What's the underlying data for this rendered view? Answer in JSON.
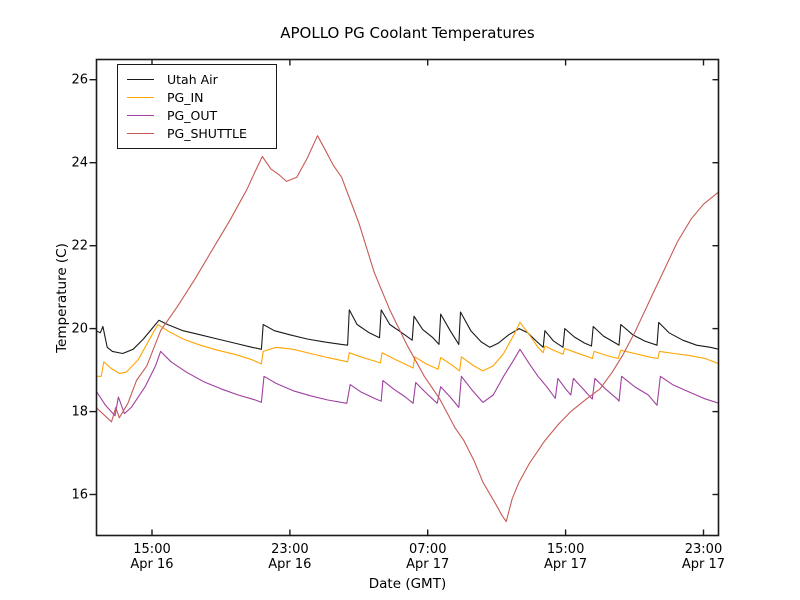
{
  "figure": {
    "background": "#ffffff",
    "frame_color": "#1a1a1a",
    "tick_color": "#1a1a1a"
  },
  "chart_data": {
    "type": "line",
    "title": "APOLLO PG Coolant Temperatures",
    "xlabel": "Date (GMT)",
    "ylabel": "Temperature (C)",
    "x_units": "hours since Apr 16 00:00 GMT",
    "xlim": [
      11.75,
      47.9
    ],
    "ylim": [
      15,
      26.5
    ],
    "yticks": [
      16,
      18,
      20,
      22,
      24,
      26
    ],
    "xticks": [
      {
        "hour": 15,
        "time": "15:00",
        "date": "Apr 16"
      },
      {
        "hour": 23,
        "time": "23:00",
        "date": "Apr 16"
      },
      {
        "hour": 31,
        "time": "07:00",
        "date": "Apr 17"
      },
      {
        "hour": 39,
        "time": "15:00",
        "date": "Apr 17"
      },
      {
        "hour": 47,
        "time": "23:00",
        "date": "Apr 17"
      }
    ],
    "grid": false,
    "legend_position": "upper left",
    "series": [
      {
        "name": "Utah Air",
        "color": "#1a1a1a",
        "points": [
          [
            11.75,
            19.95
          ],
          [
            12.0,
            19.9
          ],
          [
            12.15,
            20.05
          ],
          [
            12.4,
            19.55
          ],
          [
            12.7,
            19.45
          ],
          [
            13.3,
            19.4
          ],
          [
            13.9,
            19.5
          ],
          [
            14.5,
            19.75
          ],
          [
            15.0,
            20.0
          ],
          [
            15.4,
            20.2
          ],
          [
            15.9,
            20.1
          ],
          [
            16.8,
            19.95
          ],
          [
            17.8,
            19.85
          ],
          [
            18.8,
            19.75
          ],
          [
            19.8,
            19.65
          ],
          [
            20.8,
            19.55
          ],
          [
            21.35,
            19.5
          ],
          [
            21.45,
            20.1
          ],
          [
            22.1,
            19.95
          ],
          [
            23.0,
            19.85
          ],
          [
            24.0,
            19.75
          ],
          [
            25.0,
            19.68
          ],
          [
            26.0,
            19.62
          ],
          [
            26.35,
            19.6
          ],
          [
            26.45,
            20.45
          ],
          [
            26.9,
            20.1
          ],
          [
            27.6,
            19.9
          ],
          [
            28.2,
            19.78
          ],
          [
            28.3,
            20.45
          ],
          [
            28.8,
            20.1
          ],
          [
            29.5,
            19.9
          ],
          [
            30.1,
            19.72
          ],
          [
            30.2,
            20.3
          ],
          [
            30.7,
            19.98
          ],
          [
            31.3,
            19.78
          ],
          [
            31.65,
            19.62
          ],
          [
            31.75,
            20.35
          ],
          [
            32.3,
            19.95
          ],
          [
            32.8,
            19.62
          ],
          [
            32.9,
            20.4
          ],
          [
            33.5,
            19.95
          ],
          [
            34.1,
            19.68
          ],
          [
            34.6,
            19.55
          ],
          [
            35.1,
            19.65
          ],
          [
            35.7,
            19.85
          ],
          [
            36.3,
            20.0
          ],
          [
            36.8,
            19.9
          ],
          [
            37.3,
            19.7
          ],
          [
            37.7,
            19.55
          ],
          [
            37.8,
            19.95
          ],
          [
            38.3,
            19.7
          ],
          [
            38.85,
            19.55
          ],
          [
            38.95,
            20.0
          ],
          [
            39.5,
            19.8
          ],
          [
            40.1,
            19.65
          ],
          [
            40.5,
            19.58
          ],
          [
            40.6,
            20.05
          ],
          [
            41.2,
            19.82
          ],
          [
            41.9,
            19.65
          ],
          [
            42.1,
            19.6
          ],
          [
            42.2,
            20.1
          ],
          [
            42.9,
            19.85
          ],
          [
            43.6,
            19.7
          ],
          [
            44.3,
            19.6
          ],
          [
            44.4,
            20.15
          ],
          [
            45.0,
            19.9
          ],
          [
            45.8,
            19.72
          ],
          [
            46.6,
            19.6
          ],
          [
            47.4,
            19.55
          ],
          [
            47.9,
            19.5
          ]
        ]
      },
      {
        "name": "PG_IN",
        "color": "#FFA500",
        "points": [
          [
            11.75,
            18.85
          ],
          [
            12.05,
            18.85
          ],
          [
            12.2,
            19.2
          ],
          [
            12.6,
            19.05
          ],
          [
            13.1,
            18.92
          ],
          [
            13.5,
            18.95
          ],
          [
            14.2,
            19.25
          ],
          [
            15.0,
            19.85
          ],
          [
            15.35,
            20.1
          ],
          [
            15.9,
            19.95
          ],
          [
            16.8,
            19.75
          ],
          [
            17.8,
            19.6
          ],
          [
            18.8,
            19.48
          ],
          [
            19.8,
            19.38
          ],
          [
            20.8,
            19.25
          ],
          [
            21.35,
            19.15
          ],
          [
            21.45,
            19.45
          ],
          [
            22.2,
            19.55
          ],
          [
            23.2,
            19.5
          ],
          [
            24.2,
            19.4
          ],
          [
            25.2,
            19.3
          ],
          [
            26.35,
            19.2
          ],
          [
            26.45,
            19.42
          ],
          [
            27.1,
            19.32
          ],
          [
            27.9,
            19.22
          ],
          [
            28.25,
            19.17
          ],
          [
            28.35,
            19.42
          ],
          [
            29.0,
            19.28
          ],
          [
            29.8,
            19.12
          ],
          [
            30.15,
            19.05
          ],
          [
            30.25,
            19.32
          ],
          [
            30.9,
            19.15
          ],
          [
            31.6,
            19.02
          ],
          [
            31.75,
            19.3
          ],
          [
            32.4,
            19.12
          ],
          [
            32.85,
            18.98
          ],
          [
            32.95,
            19.32
          ],
          [
            33.6,
            19.12
          ],
          [
            34.2,
            18.98
          ],
          [
            34.8,
            19.1
          ],
          [
            35.4,
            19.4
          ],
          [
            36.0,
            19.85
          ],
          [
            36.35,
            20.15
          ],
          [
            36.9,
            19.85
          ],
          [
            37.4,
            19.55
          ],
          [
            37.7,
            19.42
          ],
          [
            37.8,
            19.58
          ],
          [
            38.3,
            19.48
          ],
          [
            38.85,
            19.38
          ],
          [
            38.95,
            19.52
          ],
          [
            39.6,
            19.42
          ],
          [
            40.3,
            19.32
          ],
          [
            40.55,
            19.28
          ],
          [
            40.65,
            19.45
          ],
          [
            41.4,
            19.35
          ],
          [
            42.05,
            19.28
          ],
          [
            42.2,
            19.48
          ],
          [
            43.0,
            19.4
          ],
          [
            43.8,
            19.32
          ],
          [
            44.35,
            19.28
          ],
          [
            44.45,
            19.45
          ],
          [
            45.3,
            19.4
          ],
          [
            46.2,
            19.35
          ],
          [
            47.1,
            19.28
          ],
          [
            47.9,
            19.15
          ]
        ]
      },
      {
        "name": "PG_OUT",
        "color": "#A040A0",
        "points": [
          [
            11.75,
            18.5
          ],
          [
            12.3,
            18.15
          ],
          [
            12.85,
            17.9
          ],
          [
            13.05,
            18.35
          ],
          [
            13.4,
            17.95
          ],
          [
            13.8,
            18.1
          ],
          [
            14.6,
            18.6
          ],
          [
            15.2,
            19.1
          ],
          [
            15.5,
            19.45
          ],
          [
            16.1,
            19.2
          ],
          [
            17.0,
            18.95
          ],
          [
            18.0,
            18.72
          ],
          [
            19.0,
            18.55
          ],
          [
            20.0,
            18.4
          ],
          [
            21.0,
            18.28
          ],
          [
            21.35,
            18.22
          ],
          [
            21.5,
            18.85
          ],
          [
            22.2,
            18.68
          ],
          [
            23.2,
            18.5
          ],
          [
            24.2,
            18.38
          ],
          [
            25.2,
            18.28
          ],
          [
            26.3,
            18.2
          ],
          [
            26.5,
            18.65
          ],
          [
            27.1,
            18.48
          ],
          [
            27.9,
            18.32
          ],
          [
            28.3,
            18.25
          ],
          [
            28.4,
            18.75
          ],
          [
            29.0,
            18.55
          ],
          [
            29.7,
            18.35
          ],
          [
            30.15,
            18.2
          ],
          [
            30.3,
            18.7
          ],
          [
            30.9,
            18.45
          ],
          [
            31.55,
            18.2
          ],
          [
            31.75,
            18.6
          ],
          [
            32.3,
            18.35
          ],
          [
            32.8,
            18.1
          ],
          [
            32.95,
            18.85
          ],
          [
            33.6,
            18.5
          ],
          [
            34.2,
            18.22
          ],
          [
            34.8,
            18.4
          ],
          [
            35.4,
            18.85
          ],
          [
            36.0,
            19.25
          ],
          [
            36.35,
            19.5
          ],
          [
            36.9,
            19.15
          ],
          [
            37.4,
            18.85
          ],
          [
            37.9,
            18.6
          ],
          [
            38.4,
            18.32
          ],
          [
            38.55,
            18.8
          ],
          [
            39.0,
            18.55
          ],
          [
            39.3,
            18.4
          ],
          [
            39.45,
            18.8
          ],
          [
            40.0,
            18.55
          ],
          [
            40.55,
            18.3
          ],
          [
            40.7,
            18.8
          ],
          [
            41.3,
            18.55
          ],
          [
            42.0,
            18.3
          ],
          [
            42.1,
            18.25
          ],
          [
            42.25,
            18.85
          ],
          [
            43.0,
            18.6
          ],
          [
            43.8,
            18.4
          ],
          [
            44.3,
            18.15
          ],
          [
            44.5,
            18.85
          ],
          [
            45.2,
            18.65
          ],
          [
            46.0,
            18.5
          ],
          [
            47.0,
            18.32
          ],
          [
            47.9,
            18.2
          ]
        ]
      },
      {
        "name": "PG_SHUTTLE",
        "color": "#C65B55",
        "points": [
          [
            11.75,
            18.1
          ],
          [
            12.4,
            17.85
          ],
          [
            12.65,
            17.75
          ],
          [
            12.9,
            18.1
          ],
          [
            13.1,
            17.85
          ],
          [
            13.6,
            18.2
          ],
          [
            14.1,
            18.75
          ],
          [
            14.7,
            19.1
          ],
          [
            15.5,
            19.95
          ],
          [
            16.5,
            20.55
          ],
          [
            17.5,
            21.2
          ],
          [
            18.5,
            21.9
          ],
          [
            19.5,
            22.6
          ],
          [
            20.5,
            23.35
          ],
          [
            21.0,
            23.8
          ],
          [
            21.4,
            24.15
          ],
          [
            21.9,
            23.85
          ],
          [
            22.4,
            23.7
          ],
          [
            22.8,
            23.55
          ],
          [
            23.4,
            23.65
          ],
          [
            24.0,
            24.1
          ],
          [
            24.6,
            24.65
          ],
          [
            25.0,
            24.35
          ],
          [
            25.5,
            23.95
          ],
          [
            26.0,
            23.65
          ],
          [
            26.5,
            23.1
          ],
          [
            27.0,
            22.55
          ],
          [
            27.9,
            21.35
          ],
          [
            28.8,
            20.45
          ],
          [
            29.8,
            19.6
          ],
          [
            30.8,
            18.85
          ],
          [
            31.7,
            18.3
          ],
          [
            32.6,
            17.6
          ],
          [
            33.1,
            17.3
          ],
          [
            33.7,
            16.8
          ],
          [
            34.2,
            16.3
          ],
          [
            34.9,
            15.8
          ],
          [
            35.3,
            15.5
          ],
          [
            35.55,
            15.35
          ],
          [
            35.9,
            15.9
          ],
          [
            36.3,
            16.3
          ],
          [
            36.9,
            16.75
          ],
          [
            37.8,
            17.3
          ],
          [
            38.6,
            17.7
          ],
          [
            39.3,
            18.0
          ],
          [
            40.2,
            18.3
          ],
          [
            41.0,
            18.55
          ],
          [
            41.7,
            18.95
          ],
          [
            42.3,
            19.35
          ],
          [
            43.0,
            19.9
          ],
          [
            43.9,
            20.7
          ],
          [
            44.7,
            21.4
          ],
          [
            45.5,
            22.1
          ],
          [
            46.3,
            22.65
          ],
          [
            47.0,
            23.0
          ],
          [
            47.9,
            23.3
          ]
        ]
      }
    ]
  }
}
